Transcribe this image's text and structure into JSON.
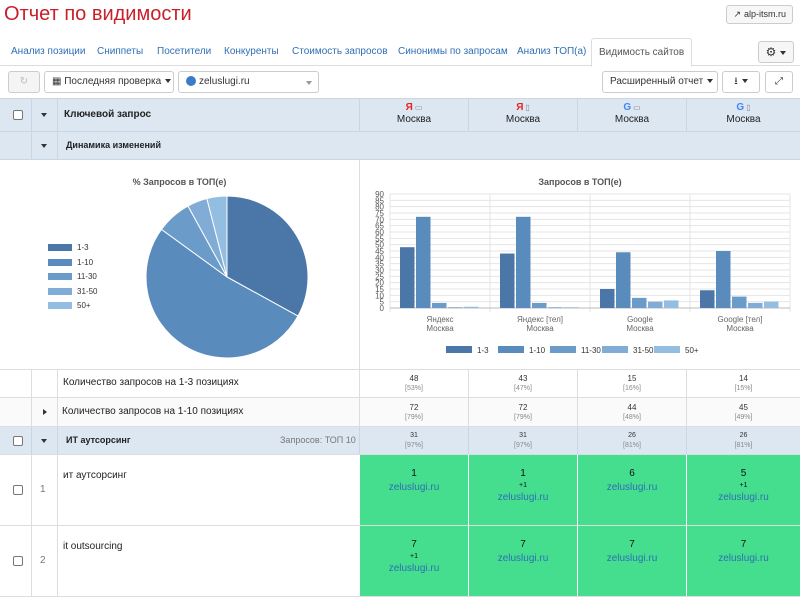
{
  "page_title": "Отчет по видимости",
  "external_link": "alp-itsm.ru",
  "tabs": [
    {
      "label": "Анализ позиции"
    },
    {
      "label": "Сниппеты"
    },
    {
      "label": "Посетители"
    },
    {
      "label": "Конкуренты"
    },
    {
      "label": "Стоимость запросов"
    },
    {
      "label": "Синонимы по запросам"
    },
    {
      "label": "Анализ ТОП(а)"
    },
    {
      "label": "Видимость сайтов"
    }
  ],
  "toolbar": {
    "check_label": "Последняя проверка",
    "site_label": "zeluslugi.ru",
    "report_label": "Расширенный отчет"
  },
  "header": {
    "query_label": "Ключевой запрос",
    "columns": [
      {
        "engine": "Я",
        "engine_icon": "yandex-icon",
        "device_icon": "desktop-icon",
        "city": "Москва"
      },
      {
        "engine": "Я",
        "engine_icon": "yandex-icon",
        "device_icon": "mobile-icon",
        "city": "Москва"
      },
      {
        "engine": "G",
        "engine_icon": "google-icon",
        "device_icon": "desktop-icon",
        "city": "Москва"
      },
      {
        "engine": "G",
        "engine_icon": "google-icon",
        "device_icon": "mobile-icon",
        "city": "Москва"
      }
    ]
  },
  "dynamics_label": "Динамика изменений",
  "colors": {
    "c1_3": "#4a77a8",
    "c1_10": "#5a8bbd",
    "c11_30": "#6b9bc8",
    "c31_50": "#80acd5",
    "c50p": "#94bde2",
    "green": "#45de8f",
    "accent_red": "#c9202a"
  },
  "chart_data": [
    {
      "type": "pie",
      "title": "% Запросов в ТОП(е)",
      "categories": [
        "1-3",
        "1-10",
        "11-30",
        "31-50",
        "50+"
      ],
      "values": [
        33,
        52,
        7,
        4,
        4
      ],
      "legend": "left"
    },
    {
      "type": "bar",
      "title": "Запросов в ТОП(е)",
      "categories": [
        [
          "Яндекс",
          "Москва"
        ],
        [
          "Яндекс [тел]",
          "Москва"
        ],
        [
          "Google",
          "Москва"
        ],
        [
          "Google [тел]",
          "Москва"
        ]
      ],
      "series": [
        {
          "name": "1-3",
          "values": [
            48,
            43,
            15,
            14
          ]
        },
        {
          "name": "1-10",
          "values": [
            72,
            72,
            44,
            45
          ]
        },
        {
          "name": "11-30",
          "values": [
            4,
            4,
            8,
            9
          ]
        },
        {
          "name": "31-50",
          "values": [
            0,
            0,
            5,
            4
          ]
        },
        {
          "name": "50+",
          "values": [
            1,
            0,
            6,
            5
          ]
        }
      ],
      "ylim": [
        0,
        90
      ],
      "yticks": [
        0,
        5,
        10,
        15,
        20,
        25,
        30,
        35,
        40,
        45,
        50,
        55,
        60,
        65,
        70,
        75,
        80,
        85,
        90
      ],
      "grid": true,
      "legend": "bottom"
    }
  ],
  "summary_rows": [
    {
      "label": "Количество запросов на 1-3 позициях",
      "values": [
        {
          "n": "48",
          "p": "[53%]"
        },
        {
          "n": "43",
          "p": "[47%]"
        },
        {
          "n": "15",
          "p": "[16%]"
        },
        {
          "n": "14",
          "p": "[15%]"
        }
      ]
    },
    {
      "label": "Количество запросов на 1-10 позициях",
      "values": [
        {
          "n": "72",
          "p": "[79%]"
        },
        {
          "n": "72",
          "p": "[79%]"
        },
        {
          "n": "44",
          "p": "[48%]"
        },
        {
          "n": "45",
          "p": "[49%]"
        }
      ]
    }
  ],
  "group": {
    "label": "ИТ аутсорсинг",
    "top_label": "Запросов: ТОП 10",
    "values": [
      {
        "n": "31",
        "p": "[97%]"
      },
      {
        "n": "31",
        "p": "[97%]"
      },
      {
        "n": "26",
        "p": "[81%]"
      },
      {
        "n": "26",
        "p": "[81%]"
      }
    ]
  },
  "keywords": [
    {
      "num": "1",
      "query": "ит аутсорсинг",
      "cells": [
        {
          "pos": "1",
          "delta": "",
          "site": "zeluslugi.ru"
        },
        {
          "pos": "1",
          "delta": "+1",
          "site": "zeluslugi.ru"
        },
        {
          "pos": "6",
          "delta": "",
          "site": "zeluslugi.ru"
        },
        {
          "pos": "5",
          "delta": "+1",
          "site": "zeluslugi.ru"
        }
      ]
    },
    {
      "num": "2",
      "query": "it outsourcing",
      "cells": [
        {
          "pos": "7",
          "delta": "+1",
          "site": "zeluslugi.ru"
        },
        {
          "pos": "7",
          "delta": "",
          "site": "zeluslugi.ru"
        },
        {
          "pos": "7",
          "delta": "",
          "site": "zeluslugi.ru"
        },
        {
          "pos": "7",
          "delta": "",
          "site": "zeluslugi.ru"
        }
      ]
    }
  ]
}
